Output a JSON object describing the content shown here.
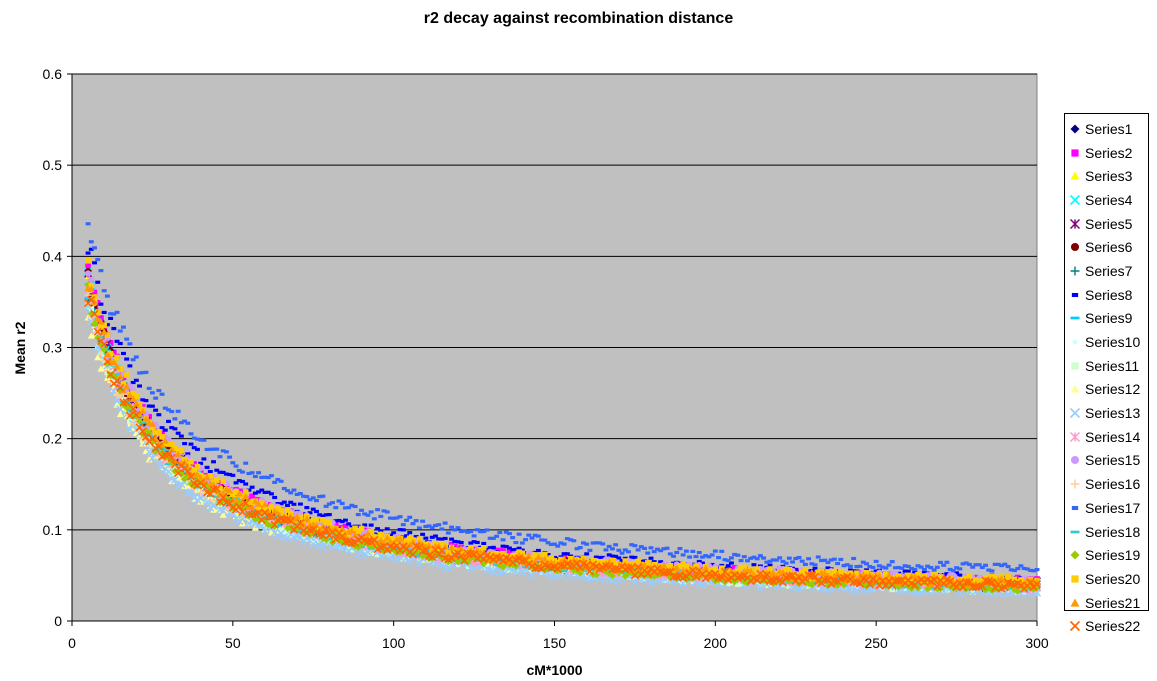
{
  "chart_data": {
    "type": "scatter",
    "title": "r2 decay against recombination distance",
    "xlabel": "cM*1000",
    "ylabel": "Mean r2",
    "xlim": [
      0,
      300
    ],
    "ylim": [
      0,
      0.6
    ],
    "x_ticks": [
      0,
      50,
      100,
      150,
      200,
      250,
      300
    ],
    "y_ticks": [
      0,
      0.1,
      0.2,
      0.3,
      0.4,
      0.5,
      0.6
    ],
    "x_tick_labels": [
      "0",
      "50",
      "100",
      "150",
      "200",
      "250",
      "300"
    ],
    "y_tick_labels": [
      "0",
      "0.1",
      "0.2",
      "0.3",
      "0.4",
      "0.5",
      "0.6"
    ],
    "grid": "horizontal",
    "legend_position": "right",
    "plot_background": "#C0C0C0",
    "decay_model": "y = a / (1 + b * x) + c, sampled at x = 5, 6, ... 300 (series 12 and 16 end at about x = 63)",
    "series": [
      {
        "name": "Series1",
        "color": "#000080",
        "marker": "diamond",
        "a": 0.46,
        "b": 0.055,
        "c": 0.015,
        "x_max": 300
      },
      {
        "name": "Series2",
        "color": "#FF00FF",
        "marker": "square",
        "a": 0.47,
        "b": 0.055,
        "c": 0.016,
        "x_max": 300
      },
      {
        "name": "Series3",
        "color": "#FFFF00",
        "marker": "triangle",
        "a": 0.46,
        "b": 0.056,
        "c": 0.013,
        "x_max": 300
      },
      {
        "name": "Series4",
        "color": "#00FFFF",
        "marker": "x",
        "a": 0.47,
        "b": 0.058,
        "c": 0.012,
        "x_max": 300
      },
      {
        "name": "Series5",
        "color": "#800080",
        "marker": "asterisk",
        "a": 0.46,
        "b": 0.057,
        "c": 0.014,
        "x_max": 300
      },
      {
        "name": "Series6",
        "color": "#800000",
        "marker": "circle",
        "a": 0.46,
        "b": 0.056,
        "c": 0.014,
        "x_max": 300
      },
      {
        "name": "Series7",
        "color": "#008080",
        "marker": "plus",
        "a": 0.45,
        "b": 0.057,
        "c": 0.013,
        "x_max": 300
      },
      {
        "name": "Series8",
        "color": "#0000FF",
        "marker": "dash",
        "a": 0.5,
        "b": 0.052,
        "c": 0.016,
        "x_max": 300
      },
      {
        "name": "Series9",
        "color": "#00CCFF",
        "marker": "bar",
        "a": 0.45,
        "b": 0.058,
        "c": 0.012,
        "x_max": 300
      },
      {
        "name": "Series10",
        "color": "#CCFFFF",
        "marker": "bullet",
        "a": 0.44,
        "b": 0.06,
        "c": 0.011,
        "x_max": 300
      },
      {
        "name": "Series11",
        "color": "#CCFFCC",
        "marker": "square",
        "a": 0.44,
        "b": 0.059,
        "c": 0.011,
        "x_max": 300
      },
      {
        "name": "Series12",
        "color": "#FFFF99",
        "marker": "triangle",
        "a": 0.42,
        "b": 0.06,
        "c": 0.012,
        "x_max": 63
      },
      {
        "name": "Series13",
        "color": "#99CCFF",
        "marker": "x",
        "a": 0.44,
        "b": 0.062,
        "c": 0.01,
        "x_max": 300
      },
      {
        "name": "Series14",
        "color": "#FF99CC",
        "marker": "asterisk",
        "a": 0.45,
        "b": 0.057,
        "c": 0.013,
        "x_max": 300
      },
      {
        "name": "Series15",
        "color": "#CC99FF",
        "marker": "circle",
        "a": 0.46,
        "b": 0.054,
        "c": 0.017,
        "x_max": 300
      },
      {
        "name": "Series16",
        "color": "#FFCC99",
        "marker": "plus",
        "a": 0.44,
        "b": 0.058,
        "c": 0.013,
        "x_max": 63
      },
      {
        "name": "Series17",
        "color": "#3366FF",
        "marker": "dash",
        "a": 0.5,
        "b": 0.045,
        "c": 0.022,
        "x_max": 300
      },
      {
        "name": "Series18",
        "color": "#33CCCC",
        "marker": "bar",
        "a": 0.45,
        "b": 0.057,
        "c": 0.013,
        "x_max": 300
      },
      {
        "name": "Series19",
        "color": "#99CC00",
        "marker": "diamond",
        "a": 0.45,
        "b": 0.058,
        "c": 0.012,
        "x_max": 300
      },
      {
        "name": "Series20",
        "color": "#FFCC00",
        "marker": "square",
        "a": 0.47,
        "b": 0.054,
        "c": 0.016,
        "x_max": 300
      },
      {
        "name": "Series21",
        "color": "#FF9900",
        "marker": "triangle",
        "a": 0.46,
        "b": 0.055,
        "c": 0.015,
        "x_max": 300
      },
      {
        "name": "Series22",
        "color": "#FF6600",
        "marker": "x",
        "a": 0.44,
        "b": 0.056,
        "c": 0.014,
        "x_max": 300
      }
    ]
  }
}
